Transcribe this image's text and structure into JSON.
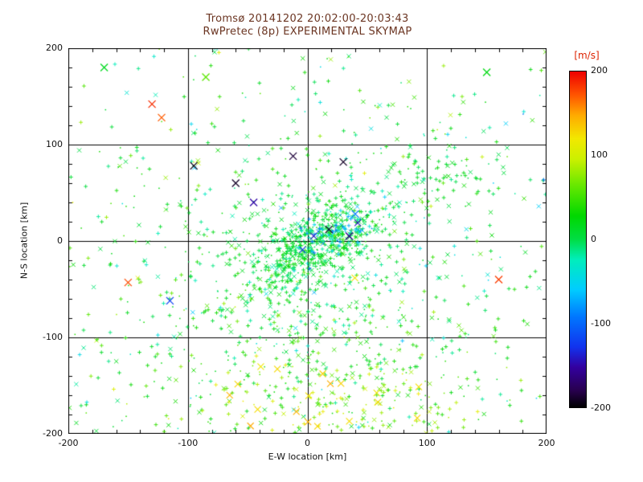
{
  "colors": {
    "title": "#6b3522",
    "axis_text": "#111111",
    "colorbar_label": "#dd2200",
    "background": "#ffffff",
    "grid": "#000000"
  },
  "chart_data": {
    "type": "scatter",
    "title": "Tromsø 20141202 20:02:00-20:03:43",
    "subtitle": "RwPretec (8p) EXPERIMENTAL SKYMAP",
    "xlabel": "E-W location [km]",
    "ylabel": "N-S location [km]",
    "xlim": [
      -200,
      200
    ],
    "ylim": [
      -200,
      200
    ],
    "xticks": [
      -200,
      -100,
      0,
      100,
      200
    ],
    "yticks": [
      -200,
      -100,
      0,
      100,
      200
    ],
    "minor_tick_step": 20,
    "grid": true,
    "colorbar": {
      "label": "[m/s]",
      "min": -200,
      "max": 200,
      "ticks": [
        200,
        100,
        0,
        -100,
        -200
      ],
      "stops": [
        [
          0.0,
          "#000000"
        ],
        [
          0.05,
          "#28004e"
        ],
        [
          0.12,
          "#3300a0"
        ],
        [
          0.18,
          "#1133ee"
        ],
        [
          0.27,
          "#0077ff"
        ],
        [
          0.35,
          "#00ccff"
        ],
        [
          0.44,
          "#00eebb"
        ],
        [
          0.5,
          "#00dd44"
        ],
        [
          0.57,
          "#00d800"
        ],
        [
          0.66,
          "#66e800"
        ],
        [
          0.74,
          "#ccf000"
        ],
        [
          0.8,
          "#f2e800"
        ],
        [
          0.87,
          "#ffaa00"
        ],
        [
          0.93,
          "#ff5500"
        ],
        [
          1.0,
          "#ee0000"
        ]
      ]
    },
    "point_generation": {
      "seed": 20141202,
      "clusters": [
        {
          "name": "core",
          "count": 600,
          "cx": 8,
          "cy": -2,
          "sx": 34,
          "sy": 16,
          "angle": 38,
          "v_mean": 8,
          "v_sd": 18
        },
        {
          "name": "halo",
          "count": 480,
          "cx": -8,
          "cy": -30,
          "sx": 75,
          "sy": 62,
          "angle": 30,
          "v_mean": 12,
          "v_sd": 26
        },
        {
          "name": "cyan-streak",
          "count": 70,
          "cx": 22,
          "cy": 8,
          "sx": 20,
          "sy": 10,
          "angle": 25,
          "v_mean": -65,
          "v_sd": 30
        },
        {
          "name": "lower-spread",
          "count": 240,
          "cx": 10,
          "cy": -120,
          "sx": 75,
          "sy": 45,
          "angle": 0,
          "v_mean": 32,
          "v_sd": 26
        },
        {
          "name": "bottom-band",
          "count": 150,
          "cx": 30,
          "cy": -168,
          "sx": 62,
          "sy": 22,
          "angle": 0,
          "v_mean": 85,
          "v_sd": 28
        },
        {
          "name": "right-patch",
          "count": 70,
          "cx": 118,
          "cy": 66,
          "sx": 30,
          "sy": 14,
          "angle": -15,
          "v_mean": 15,
          "v_sd": 12
        },
        {
          "name": "sparse-field",
          "count": 430,
          "uniform": true,
          "v_mean": 15,
          "v_sd": 38
        }
      ]
    },
    "notable_points": [
      {
        "x": -130,
        "y": 142,
        "v": 185
      },
      {
        "x": -122,
        "y": 128,
        "v": 170
      },
      {
        "x": 160,
        "y": -40,
        "v": 180
      },
      {
        "x": -150,
        "y": -43,
        "v": 175
      },
      {
        "x": -95,
        "y": 78,
        "v": -195
      },
      {
        "x": -60,
        "y": 60,
        "v": -190
      },
      {
        "x": 30,
        "y": 82,
        "v": -190
      },
      {
        "x": -12,
        "y": 88,
        "v": -185
      },
      {
        "x": 18,
        "y": 12,
        "v": -190
      },
      {
        "x": 35,
        "y": 5,
        "v": -160
      },
      {
        "x": -45,
        "y": 40,
        "v": -150
      },
      {
        "x": -115,
        "y": -62,
        "v": -120
      },
      {
        "x": 40,
        "y": 28,
        "v": -90
      },
      {
        "x": -170,
        "y": 180,
        "v": 15
      },
      {
        "x": 150,
        "y": 175,
        "v": 20
      },
      {
        "x": -85,
        "y": 170,
        "v": 60
      }
    ]
  }
}
